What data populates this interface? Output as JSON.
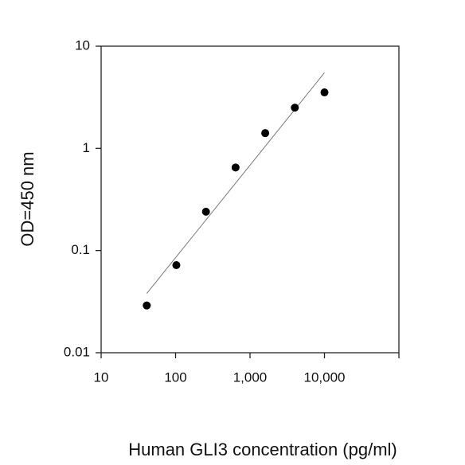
{
  "chart_data": {
    "type": "scatter",
    "x_label": "Human GLI3 concentration (pg/ml)",
    "y_label": "OD=450 nm",
    "x": [
      41,
      102.4,
      256,
      640,
      1600,
      4000,
      10000
    ],
    "values": [
      0.029,
      0.072,
      0.24,
      0.65,
      1.41,
      2.5,
      3.53
    ],
    "color": "#000000",
    "trendline": {
      "x": [
        41,
        10000
      ],
      "values": [
        0.038,
        5.5
      ],
      "color": "#777777"
    },
    "xlim": [
      10,
      100000
    ],
    "ylim": [
      0.01,
      10
    ],
    "xscale": "log",
    "yscale": "log",
    "xticks": [
      10,
      100,
      {
        "value": 1000,
        "label": "1,000"
      },
      {
        "value": 10000,
        "label": "10,000"
      }
    ],
    "yticks": [
      0.01,
      0.1,
      1,
      10
    ],
    "grid": false
  }
}
